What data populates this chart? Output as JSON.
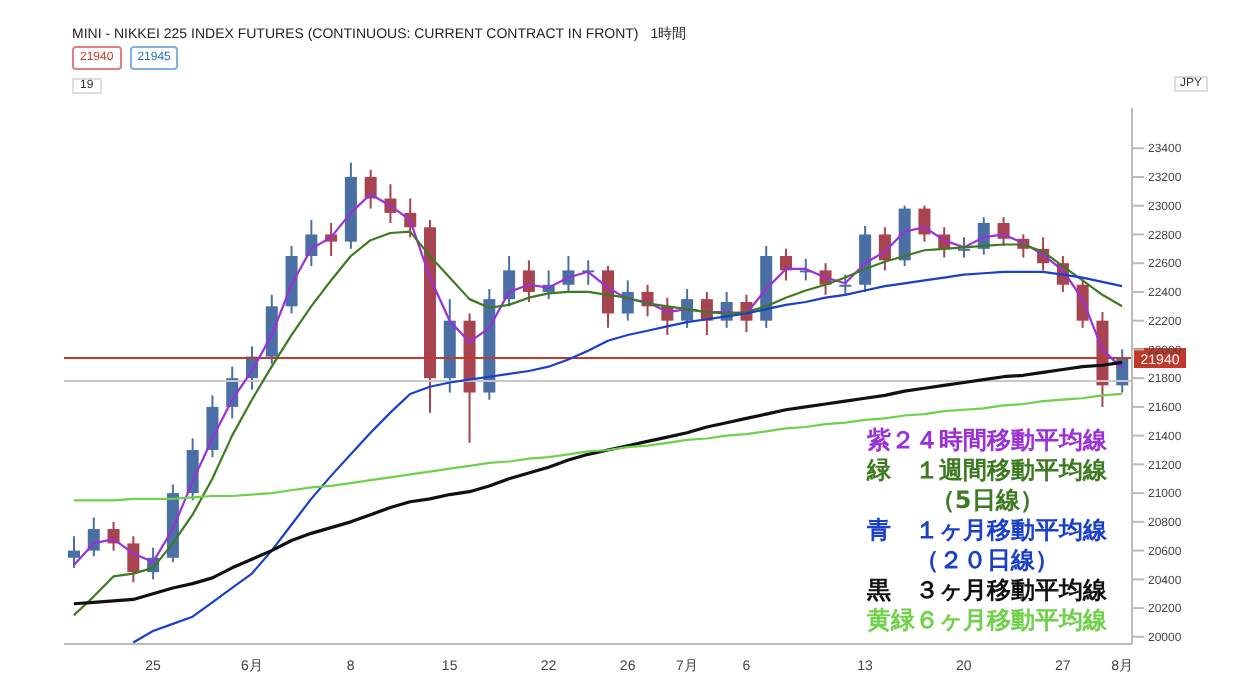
{
  "chart_data": {
    "type": "candlestick",
    "title": "MINI - NIKKEI 225 INDEX FUTURES (CONTINUOUS: CURRENT CONTRACT IN FRONT)",
    "subtitle": "1時間",
    "categories": [
      null,
      null,
      null,
      null,
      "25",
      null,
      null,
      null,
      null,
      "6月",
      null,
      null,
      null,
      null,
      "8",
      null,
      null,
      null,
      null,
      "15",
      null,
      null,
      null,
      null,
      "22",
      null,
      null,
      null,
      "26",
      null,
      null,
      "7月",
      null,
      null,
      "6",
      null,
      null,
      null,
      null,
      null,
      "13",
      null,
      null,
      null,
      null,
      "20",
      null,
      null,
      null,
      null,
      "27",
      null,
      null,
      "8月"
    ],
    "ohlc": [
      [
        20550,
        20700,
        20480,
        20600
      ],
      [
        20600,
        20830,
        20560,
        20750
      ],
      [
        20750,
        20800,
        20600,
        20650
      ],
      [
        20650,
        20700,
        20380,
        20450
      ],
      [
        20450,
        20620,
        20400,
        20550
      ],
      [
        20550,
        21060,
        20520,
        21000
      ],
      [
        21000,
        21380,
        20950,
        21300
      ],
      [
        21300,
        21680,
        21250,
        21600
      ],
      [
        21600,
        21880,
        21520,
        21800
      ],
      [
        21800,
        22020,
        21720,
        21950
      ],
      [
        21950,
        22380,
        21900,
        22300
      ],
      [
        22300,
        22720,
        22250,
        22650
      ],
      [
        22650,
        22900,
        22580,
        22800
      ],
      [
        22800,
        22880,
        22650,
        22750
      ],
      [
        22750,
        23300,
        22700,
        23200
      ],
      [
        23200,
        23250,
        22980,
        23050
      ],
      [
        23050,
        23150,
        22880,
        22950
      ],
      [
        22950,
        23050,
        22780,
        22850
      ],
      [
        22850,
        22900,
        21560,
        21800
      ],
      [
        21800,
        22350,
        21700,
        22200
      ],
      [
        22200,
        22250,
        21350,
        21700
      ],
      [
        21700,
        22420,
        21650,
        22350
      ],
      [
        22350,
        22650,
        22300,
        22550
      ],
      [
        22550,
        22620,
        22330,
        22400
      ],
      [
        22400,
        22550,
        22350,
        22450
      ],
      [
        22450,
        22650,
        22400,
        22550
      ],
      [
        22550,
        22620,
        22450,
        22550
      ],
      [
        22550,
        22580,
        22150,
        22250
      ],
      [
        22250,
        22480,
        22200,
        22400
      ],
      [
        22400,
        22450,
        22230,
        22300
      ],
      [
        22300,
        22360,
        22100,
        22200
      ],
      [
        22200,
        22420,
        22150,
        22350
      ],
      [
        22350,
        22400,
        22100,
        22200
      ],
      [
        22200,
        22400,
        22150,
        22330
      ],
      [
        22330,
        22380,
        22120,
        22200
      ],
      [
        22200,
        22720,
        22150,
        22650
      ],
      [
        22650,
        22700,
        22480,
        22550
      ],
      [
        22550,
        22630,
        22480,
        22550
      ],
      [
        22550,
        22600,
        22380,
        22450
      ],
      [
        22450,
        22520,
        22380,
        22450
      ],
      [
        22450,
        22860,
        22400,
        22800
      ],
      [
        22800,
        22850,
        22550,
        22620
      ],
      [
        22620,
        23000,
        22580,
        22980
      ],
      [
        22980,
        23000,
        22750,
        22800
      ],
      [
        22800,
        22850,
        22640,
        22700
      ],
      [
        22700,
        22780,
        22640,
        22700
      ],
      [
        22700,
        22920,
        22660,
        22880
      ],
      [
        22880,
        22920,
        22720,
        22770
      ],
      [
        22770,
        22800,
        22640,
        22700
      ],
      [
        22700,
        22780,
        22550,
        22600
      ],
      [
        22600,
        22650,
        22400,
        22450
      ],
      [
        22450,
        22500,
        22150,
        22200
      ],
      [
        22200,
        22260,
        21600,
        21750
      ],
      [
        21750,
        22000,
        21700,
        21940
      ]
    ],
    "colors": [
      "#4a6fa5",
      "#4a6fa5",
      "#a8444f",
      "#a8444f",
      "#4a6fa5",
      "#4a6fa5",
      "#4a6fa5",
      "#4a6fa5",
      "#4a6fa5",
      "#4a6fa5",
      "#4a6fa5",
      "#4a6fa5",
      "#4a6fa5",
      "#a8444f",
      "#4a6fa5",
      "#a8444f",
      "#a8444f",
      "#a8444f",
      "#a8444f",
      "#4a6fa5",
      "#a8444f",
      "#4a6fa5",
      "#4a6fa5",
      "#a8444f",
      "#4a6fa5",
      "#4a6fa5",
      "#4a6fa5",
      "#a8444f",
      "#4a6fa5",
      "#a8444f",
      "#a8444f",
      "#4a6fa5",
      "#a8444f",
      "#4a6fa5",
      "#a8444f",
      "#4a6fa5",
      "#a8444f",
      "#4a6fa5",
      "#a8444f",
      "#4a6fa5",
      "#4a6fa5",
      "#a8444f",
      "#4a6fa5",
      "#a8444f",
      "#a8444f",
      "#4a6fa5",
      "#4a6fa5",
      "#a8444f",
      "#a8444f",
      "#a8444f",
      "#a8444f",
      "#a8444f",
      "#a8444f",
      "#4a6fa5"
    ],
    "series": [
      {
        "type": "line",
        "name": "紫２４時間移動平均線",
        "color": "#9b30d9",
        "values": [
          20500,
          20650,
          20680,
          20580,
          20520,
          20750,
          21080,
          21380,
          21650,
          21850,
          22100,
          22450,
          22700,
          22780,
          22950,
          23080,
          23000,
          22900,
          22500,
          22200,
          22050,
          22150,
          22400,
          22450,
          22430,
          22500,
          22540,
          22430,
          22350,
          22330,
          22260,
          22280,
          22260,
          22260,
          22250,
          22420,
          22560,
          22560,
          22500,
          22460,
          22600,
          22680,
          22820,
          22850,
          22760,
          22710,
          22780,
          22800,
          22740,
          22660,
          22550,
          22350,
          22000,
          21870
        ]
      },
      {
        "type": "line",
        "name": "緑　１週間移動平均線（5日線）",
        "color": "#3d7a22",
        "values": [
          20150,
          20280,
          20420,
          20440,
          20480,
          20650,
          20850,
          21100,
          21400,
          21650,
          21880,
          22100,
          22300,
          22480,
          22650,
          22760,
          22810,
          22820,
          22650,
          22500,
          22350,
          22290,
          22310,
          22360,
          22390,
          22400,
          22400,
          22380,
          22360,
          22320,
          22300,
          22280,
          22260,
          22250,
          22260,
          22300,
          22360,
          22410,
          22450,
          22500,
          22560,
          22610,
          22650,
          22690,
          22700,
          22710,
          22720,
          22730,
          22730,
          22680,
          22580,
          22480,
          22380,
          22300
        ]
      },
      {
        "type": "line",
        "name": "青　１ヶ月移動平均線（２０日線）",
        "color": "#1a3fc8",
        "values": [
          null,
          null,
          null,
          19960,
          20040,
          20090,
          20140,
          20240,
          20340,
          20440,
          20600,
          20780,
          20960,
          21120,
          21270,
          21420,
          21560,
          21690,
          21740,
          21770,
          21790,
          21810,
          21830,
          21850,
          21880,
          21930,
          21990,
          22060,
          22100,
          22130,
          22160,
          22190,
          22210,
          22230,
          22250,
          22280,
          22310,
          22330,
          22360,
          22380,
          22410,
          22440,
          22460,
          22480,
          22500,
          22520,
          22530,
          22540,
          22540,
          22540,
          22520,
          22500,
          22470,
          22440
        ]
      },
      {
        "type": "line",
        "name": "黒　３ヶ月移動平均線",
        "color": "#111111",
        "values": [
          20230,
          20240,
          20250,
          20260,
          20300,
          20340,
          20370,
          20410,
          20480,
          20540,
          20600,
          20670,
          20720,
          20760,
          20800,
          20850,
          20900,
          20940,
          20960,
          20990,
          21010,
          21050,
          21100,
          21140,
          21180,
          21230,
          21270,
          21300,
          21330,
          21360,
          21390,
          21420,
          21460,
          21490,
          21520,
          21550,
          21580,
          21600,
          21620,
          21640,
          21660,
          21680,
          21710,
          21730,
          21750,
          21770,
          21790,
          21810,
          21820,
          21840,
          21860,
          21880,
          21890,
          21910
        ]
      },
      {
        "type": "line",
        "name": "黄緑６ヶ月移動平均線",
        "color": "#6fd04a",
        "values": [
          20950,
          20950,
          20950,
          20960,
          20960,
          20960,
          20970,
          20980,
          20980,
          20990,
          21000,
          21020,
          21040,
          21050,
          21070,
          21090,
          21110,
          21130,
          21150,
          21170,
          21190,
          21210,
          21220,
          21240,
          21250,
          21270,
          21290,
          21300,
          21320,
          21330,
          21350,
          21370,
          21380,
          21400,
          21410,
          21430,
          21450,
          21460,
          21480,
          21490,
          21510,
          21520,
          21540,
          21550,
          21570,
          21580,
          21590,
          21610,
          21620,
          21640,
          21650,
          21660,
          21680,
          21690
        ]
      }
    ],
    "ylim": [
      19950,
      23680
    ],
    "yticks": [
      20000,
      20200,
      20400,
      20600,
      20800,
      21000,
      21200,
      21400,
      21600,
      21800,
      22000,
      22200,
      22400,
      22600,
      22800,
      23000,
      23200,
      23400
    ],
    "ref_lines": [
      {
        "axis": "y",
        "value": 21940,
        "label": "21940",
        "color": "#c0392b"
      },
      {
        "axis": "y",
        "value": 21780,
        "color": "#c8c8c8"
      }
    ],
    "annotations": [
      "21940",
      "21945",
      "19",
      "JPY"
    ],
    "legend": "bottom right",
    "line_style": "solid",
    "marker": "none",
    "grid": false
  }
}
